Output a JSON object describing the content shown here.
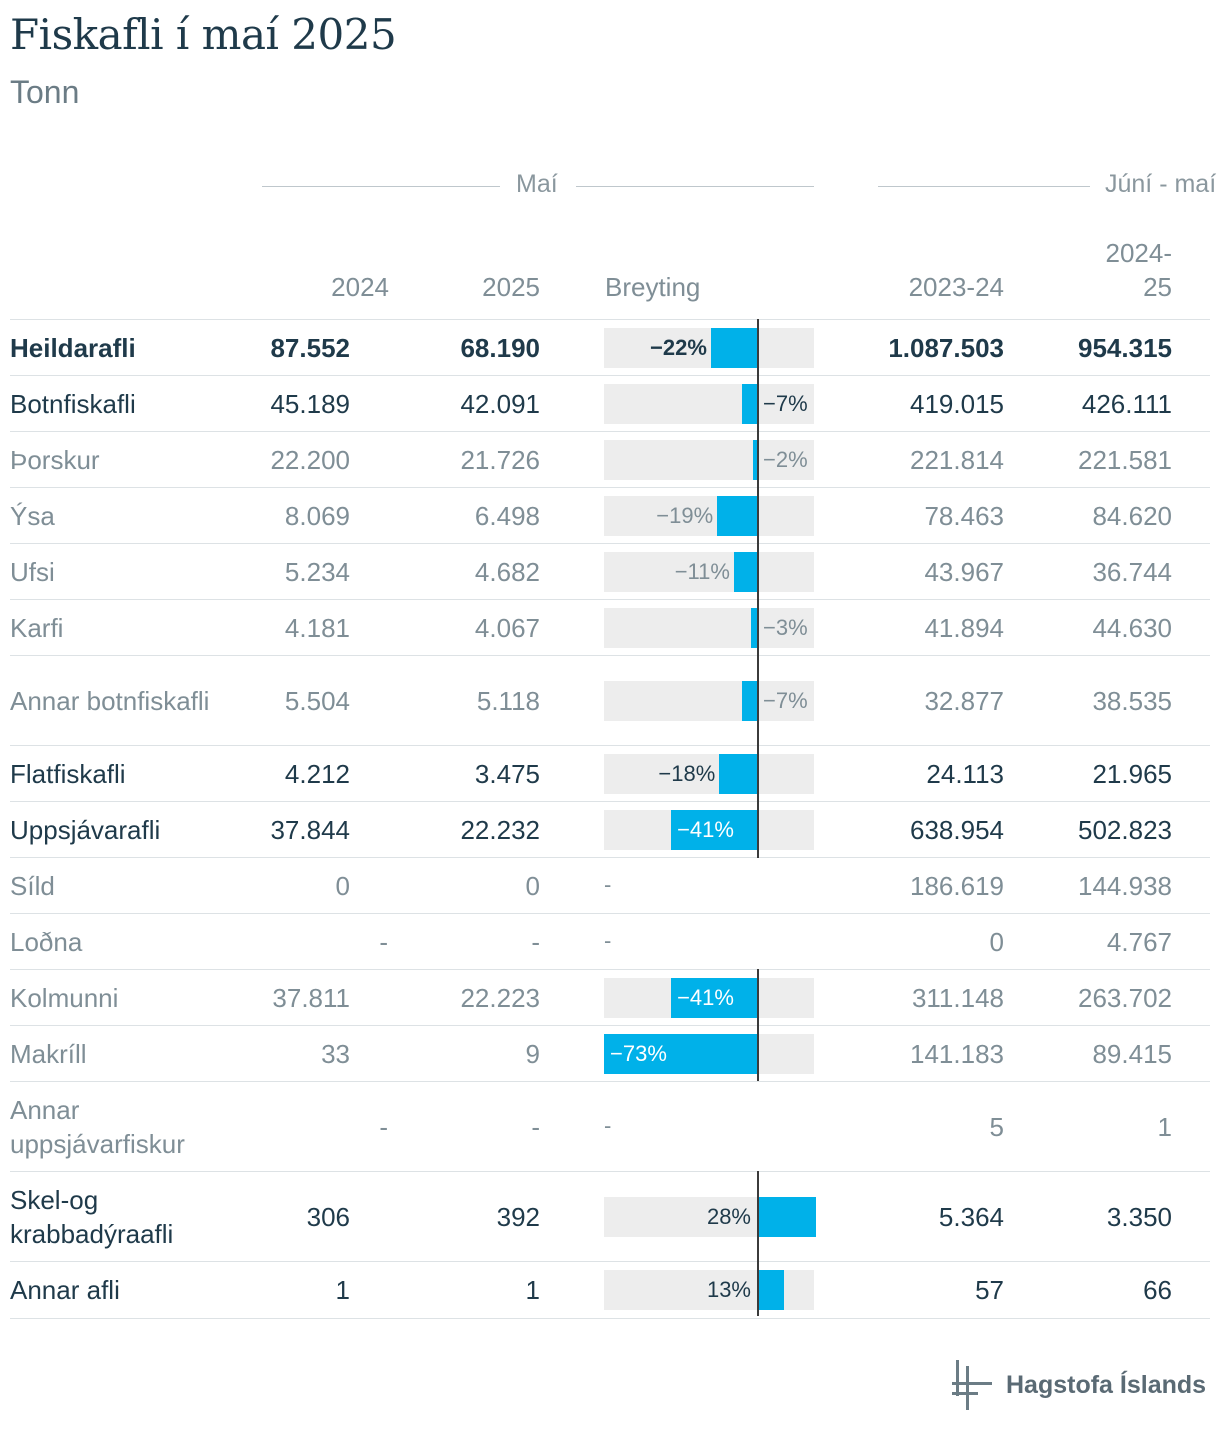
{
  "title": "Fiskafli í maí 2025",
  "subtitle": "Tonn",
  "groups": {
    "may": "Maí",
    "june_may": "Júní - maí"
  },
  "columns": {
    "y2024": "2024",
    "y2025": "2025",
    "change": "Breyting",
    "y2324": "2023-24",
    "y2425_a": "2024-",
    "y2425_b": "25"
  },
  "logo_text": "Hagstofa Íslands",
  "colors": {
    "bar": "#00b1e9",
    "bar_bg": "#ededed",
    "text": "#1f3a4a",
    "muted": "#7f8e96"
  },
  "chart_data": {
    "type": "table",
    "title": "Fiskafli í maí 2025",
    "subtitle": "Tonn",
    "change_range": [
      -73,
      28
    ],
    "rows": [
      {
        "label": "Heildarafli",
        "v2024": "87.552",
        "v2025": "68.190",
        "change_label": "−22%",
        "change": -22,
        "v2324": "1.087.503",
        "v2425": "954.315"
      },
      {
        "label": "Botnfiskafli",
        "v2024": "45.189",
        "v2025": "42.091",
        "change_label": "−7%",
        "change": -7,
        "v2324": "419.015",
        "v2425": "426.111"
      },
      {
        "label": "Þorskur",
        "v2024": "22.200",
        "v2025": "21.726",
        "change_label": "−2%",
        "change": -2,
        "v2324": "221.814",
        "v2425": "221.581"
      },
      {
        "label": "Ýsa",
        "v2024": "8.069",
        "v2025": "6.498",
        "change_label": "−19%",
        "change": -19,
        "v2324": "78.463",
        "v2425": "84.620"
      },
      {
        "label": "Ufsi",
        "v2024": "5.234",
        "v2025": "4.682",
        "change_label": "−11%",
        "change": -11,
        "v2324": "43.967",
        "v2425": "36.744"
      },
      {
        "label": "Karfi",
        "v2024": "4.181",
        "v2025": "4.067",
        "change_label": "−3%",
        "change": -3,
        "v2324": "41.894",
        "v2425": "44.630"
      },
      {
        "label": "Annar botnfiskafli",
        "v2024": "5.504",
        "v2025": "5.118",
        "change_label": "−7%",
        "change": -7,
        "v2324": "32.877",
        "v2425": "38.535"
      },
      {
        "label": "Flatfiskafli",
        "v2024": "4.212",
        "v2025": "3.475",
        "change_label": "−18%",
        "change": -18,
        "v2324": "24.113",
        "v2425": "21.965"
      },
      {
        "label": "Uppsjávarafli",
        "v2024": "37.844",
        "v2025": "22.232",
        "change_label": "−41%",
        "change": -41,
        "v2324": "638.954",
        "v2425": "502.823"
      },
      {
        "label": "Síld",
        "v2024": "0",
        "v2025": "0",
        "change_label": "-",
        "change": null,
        "v2324": "186.619",
        "v2425": "144.938"
      },
      {
        "label": "Loðna",
        "v2024": "-",
        "v2025": "-",
        "change_label": "-",
        "change": null,
        "v2324": "0",
        "v2425": "4.767"
      },
      {
        "label": "Kolmunni",
        "v2024": "37.811",
        "v2025": "22.223",
        "change_label": "−41%",
        "change": -41,
        "v2324": "311.148",
        "v2425": "263.702"
      },
      {
        "label": "Makríll",
        "v2024": "33",
        "v2025": "9",
        "change_label": "−73%",
        "change": -73,
        "v2324": "141.183",
        "v2425": "89.415"
      },
      {
        "label": "Annar uppsjávarfiskur",
        "v2024": "-",
        "v2025": "-",
        "change_label": "-",
        "change": null,
        "v2324": "5",
        "v2425": "1"
      },
      {
        "label": "Skel-og krabbadýraafli",
        "v2024": "306",
        "v2025": "392",
        "change_label": "28%",
        "change": 28,
        "v2324": "5.364",
        "v2425": "3.350"
      },
      {
        "label": "Annar afli",
        "v2024": "1",
        "v2025": "1",
        "change_label": "13%",
        "change": 13,
        "v2324": "57",
        "v2425": "66"
      }
    ]
  }
}
